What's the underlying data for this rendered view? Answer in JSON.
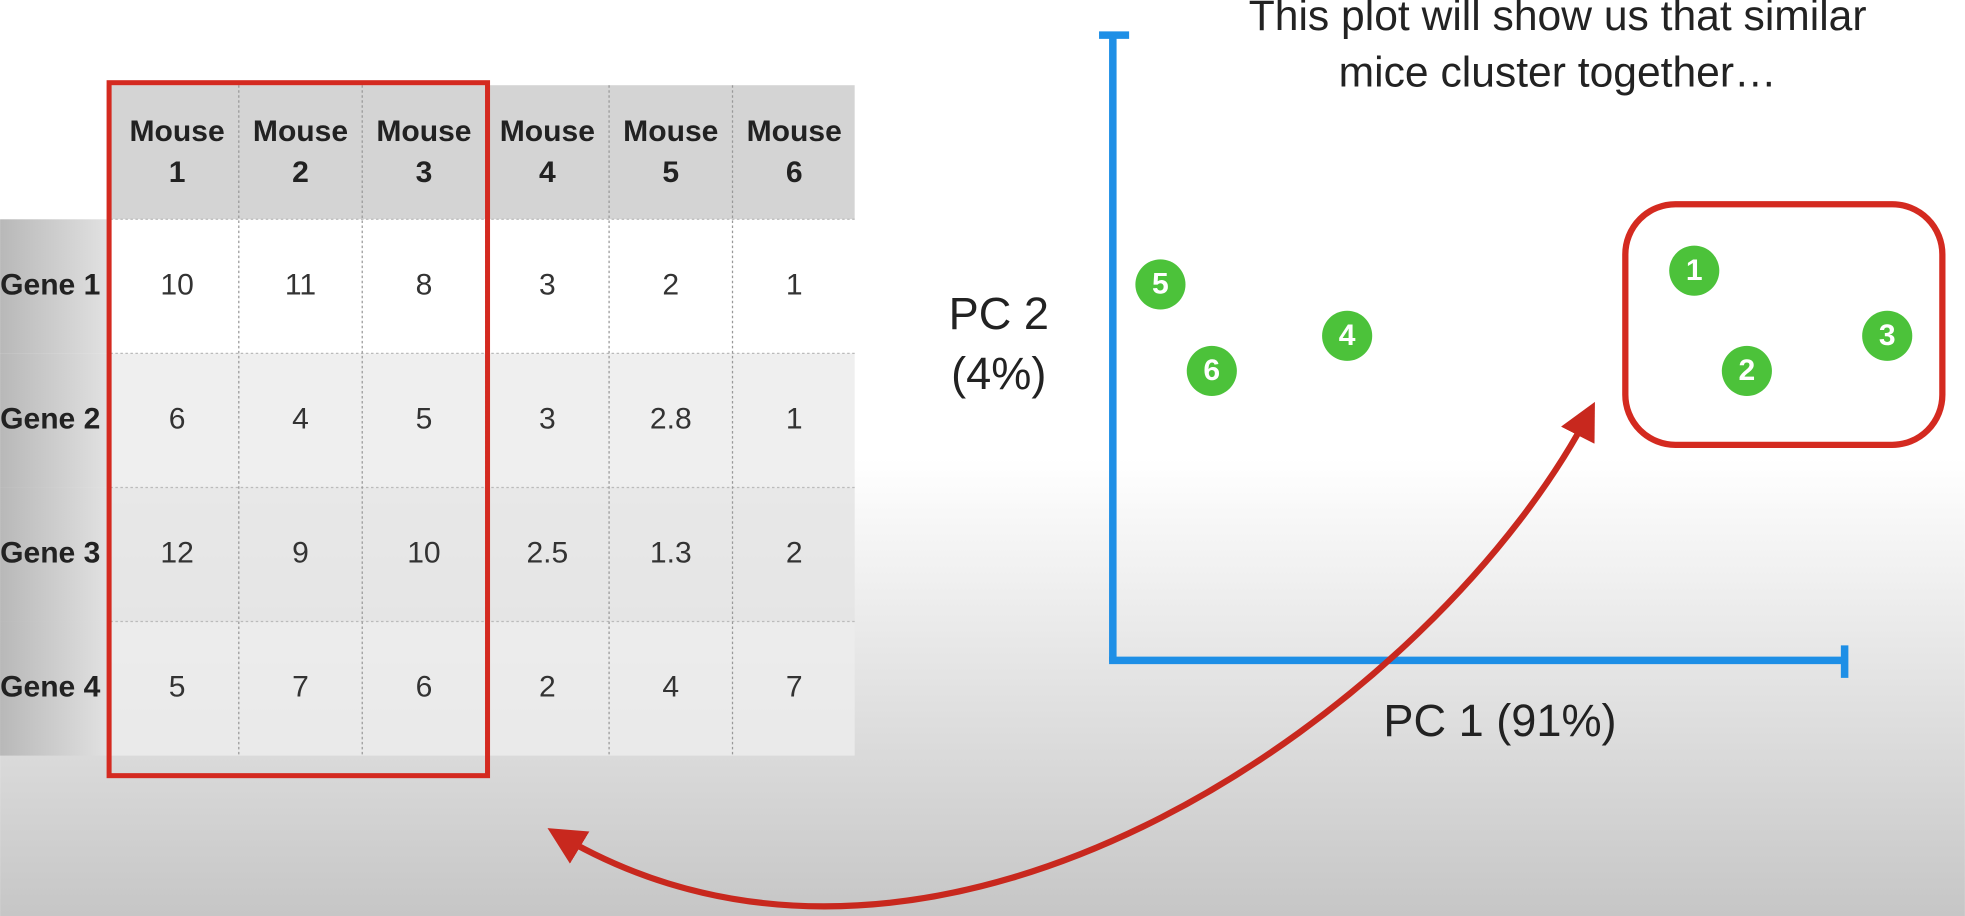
{
  "table": {
    "column_headers": [
      [
        "Mouse",
        "1"
      ],
      [
        "Mouse",
        "2"
      ],
      [
        "Mouse",
        "3"
      ],
      [
        "Mouse",
        "4"
      ],
      [
        "Mouse",
        "5"
      ],
      [
        "Mouse",
        "6"
      ]
    ],
    "rows": [
      {
        "label": "Gene 1",
        "values": [
          10,
          11,
          8,
          3,
          2,
          1
        ]
      },
      {
        "label": "Gene 2",
        "values": [
          6,
          4,
          5,
          3,
          2.8,
          1
        ]
      },
      {
        "label": "Gene 3",
        "values": [
          12,
          9,
          10,
          2.5,
          1.3,
          2
        ]
      },
      {
        "label": "Gene 4",
        "values": [
          5,
          7,
          6,
          2,
          4,
          7
        ]
      }
    ]
  },
  "plot": {
    "title_lines": [
      "This plot will show us that similar",
      "mice cluster together…"
    ],
    "x_label": "PC 1 (91%)",
    "y_label_lines": [
      "PC 2",
      "(4%)"
    ],
    "points": [
      "1",
      "2",
      "3",
      "4",
      "5",
      "6"
    ]
  }
}
